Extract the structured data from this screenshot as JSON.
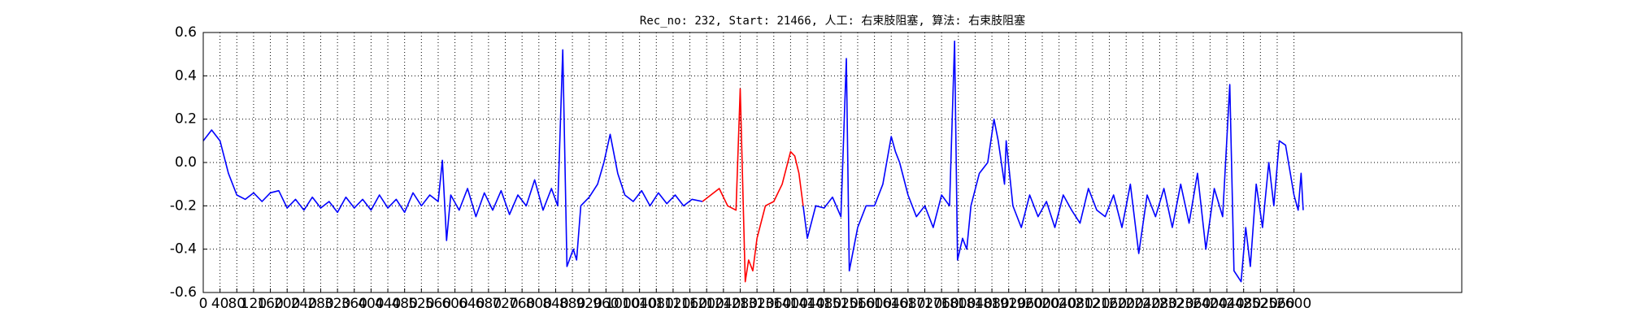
{
  "chart_data": {
    "type": "line",
    "title": "Rec_no: 232, Start: 21466, 人工: 右束肢阻塞, 算法: 右束肢阻塞",
    "x": [
      0,
      20,
      40,
      60,
      80,
      100,
      120,
      140,
      160,
      180,
      200,
      220,
      240,
      260,
      280,
      300,
      320,
      340,
      360,
      380,
      400,
      420,
      440,
      460,
      480,
      500,
      520,
      540,
      560,
      570,
      580,
      590,
      610,
      630,
      650,
      670,
      690,
      710,
      730,
      750,
      770,
      790,
      810,
      830,
      845,
      857,
      867,
      882,
      890,
      900,
      920,
      940,
      955,
      970,
      988,
      1005,
      1025,
      1045,
      1065,
      1085,
      1105,
      1125,
      1145,
      1165,
      1190,
      1210,
      1230,
      1250,
      1270,
      1280,
      1292,
      1300,
      1310,
      1320,
      1340,
      1360,
      1380,
      1400,
      1410,
      1420,
      1430,
      1440,
      1460,
      1480,
      1500,
      1520,
      1533,
      1540,
      1550,
      1560,
      1580,
      1600,
      1620,
      1640,
      1650,
      1660,
      1680,
      1700,
      1720,
      1740,
      1760,
      1779,
      1791,
      1798,
      1810,
      1820,
      1830,
      1850,
      1870,
      1885,
      1895,
      1910,
      1914,
      1930,
      1950,
      1970,
      1990,
      2010,
      2030,
      2050,
      2070,
      2090,
      2110,
      2130,
      2150,
      2170,
      2190,
      2210,
      2230,
      2250,
      2270,
      2290,
      2310,
      2330,
      2350,
      2370,
      2390,
      2410,
      2430,
      2447,
      2457,
      2474,
      2485,
      2496,
      2510,
      2525,
      2540,
      2552,
      2565,
      2580,
      2600,
      2610,
      2617,
      2622
    ],
    "series": [
      {
        "color": "#0000ff",
        "values": [
          0.1,
          0.15,
          0.1,
          -0.05,
          -0.15,
          -0.17,
          -0.14,
          -0.18,
          -0.14,
          -0.13,
          -0.21,
          -0.17,
          -0.22,
          -0.16,
          -0.21,
          -0.18,
          -0.23,
          -0.16,
          -0.21,
          -0.17,
          -0.22,
          -0.15,
          -0.21,
          -0.17,
          -0.23,
          -0.14,
          -0.2,
          -0.15,
          -0.18,
          0.01,
          -0.36,
          -0.15,
          -0.22,
          -0.12,
          -0.25,
          -0.14,
          -0.22,
          -0.13,
          -0.24,
          -0.15,
          -0.2,
          -0.08,
          -0.22,
          -0.12,
          -0.2,
          0.52,
          -0.48,
          -0.4,
          -0.45,
          -0.2,
          -0.16,
          -0.1,
          0.0,
          0.13,
          -0.05,
          -0.15,
          -0.18,
          -0.13,
          -0.2,
          -0.14,
          -0.19,
          -0.15,
          -0.2,
          -0.17,
          -0.18,
          null,
          null,
          null,
          null,
          null,
          null,
          null,
          null,
          null,
          null,
          null,
          null,
          null,
          null,
          null,
          -0.2,
          -0.35,
          -0.2,
          -0.21,
          -0.16,
          -0.25,
          0.48,
          -0.5,
          -0.4,
          -0.3,
          -0.2,
          -0.2,
          -0.1,
          0.12,
          0.05,
          0.0,
          -0.15,
          -0.25,
          -0.2,
          -0.3,
          -0.15,
          -0.2,
          0.56,
          -0.45,
          -0.35,
          -0.4,
          -0.2,
          -0.05,
          0.0,
          0.2,
          0.1,
          -0.1,
          0.1,
          -0.2,
          -0.3,
          -0.15,
          -0.25,
          -0.18,
          -0.3,
          -0.15,
          -0.22,
          -0.28,
          -0.12,
          -0.22,
          -0.25,
          -0.15,
          -0.3,
          -0.1,
          -0.42,
          -0.15,
          -0.25,
          -0.12,
          -0.3,
          -0.1,
          -0.28,
          -0.05,
          -0.4,
          -0.12,
          -0.25,
          0.36,
          -0.5,
          -0.55,
          -0.3,
          -0.48,
          -0.1,
          -0.3,
          0.0,
          -0.2,
          0.1,
          0.08,
          -0.15,
          -0.22,
          -0.05,
          -0.22
        ]
      },
      {
        "color": "#ff0000",
        "values": [
          null,
          null,
          null,
          null,
          null,
          null,
          null,
          null,
          null,
          null,
          null,
          null,
          null,
          null,
          null,
          null,
          null,
          null,
          null,
          null,
          null,
          null,
          null,
          null,
          null,
          null,
          null,
          null,
          null,
          null,
          null,
          null,
          null,
          null,
          null,
          null,
          null,
          null,
          null,
          null,
          null,
          null,
          null,
          null,
          null,
          null,
          null,
          null,
          null,
          null,
          null,
          null,
          null,
          null,
          null,
          null,
          null,
          null,
          null,
          null,
          null,
          null,
          null,
          null,
          -0.18,
          -0.15,
          -0.12,
          -0.2,
          -0.22,
          0.34,
          -0.55,
          -0.45,
          -0.5,
          -0.35,
          -0.2,
          -0.18,
          -0.1,
          0.05,
          0.03,
          -0.05,
          -0.2,
          null,
          null,
          null,
          null,
          null,
          null,
          null,
          null,
          null,
          null,
          null,
          null,
          null,
          null,
          null,
          null,
          null,
          null,
          null,
          null,
          null,
          null,
          null,
          null,
          null,
          null,
          null,
          null,
          null,
          null,
          null,
          null,
          null,
          null,
          null,
          null,
          null,
          null,
          null,
          null,
          null,
          null,
          null,
          null,
          null,
          null,
          null,
          null,
          null,
          null,
          null,
          null,
          null,
          null,
          null,
          null,
          null,
          null,
          null,
          null,
          null,
          null,
          null,
          null,
          null,
          null,
          null,
          null,
          null,
          null,
          null,
          null,
          null
        ]
      }
    ],
    "xlim": [
      0,
      3000
    ],
    "xticks": [
      0,
      40,
      80,
      120,
      160,
      200,
      240,
      280,
      320,
      360,
      400,
      440,
      480,
      520,
      560,
      600,
      640,
      680,
      720,
      760,
      800,
      840,
      880,
      920,
      960,
      1000,
      1040,
      1080,
      1120,
      1160,
      1200,
      1240,
      1280,
      1320,
      1360,
      1400,
      1440,
      1480,
      1520,
      1560,
      1600,
      1640,
      1680,
      1720,
      1760,
      1800,
      1840,
      1880,
      1920,
      1960,
      2000,
      2040,
      2080,
      2120,
      2160,
      2200,
      2240,
      2280,
      2320,
      2360,
      2400,
      2440,
      2480,
      2520,
      2560,
      2600
    ],
    "ylim": [
      -0.6,
      0.6
    ],
    "yticks": [
      -0.6,
      -0.4,
      -0.2,
      {
        "value": 0.0,
        "label": "0.0"
      },
      0.2,
      0.4,
      0.6
    ],
    "grid": true
  }
}
